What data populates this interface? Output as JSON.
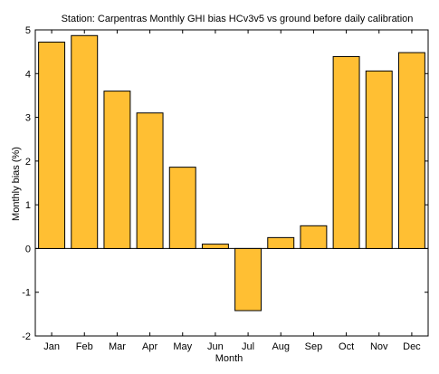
{
  "chart_data": {
    "type": "bar",
    "title": "Station: Carpentras Monthly GHI bias HCv3v5 vs ground before daily calibration",
    "xlabel": "Month",
    "ylabel": "Monthly bias (%)",
    "categories": [
      "Jan",
      "Feb",
      "Mar",
      "Apr",
      "May",
      "Jun",
      "Jul",
      "Aug",
      "Sep",
      "Oct",
      "Nov",
      "Dec"
    ],
    "values": [
      4.72,
      4.87,
      3.6,
      3.1,
      1.86,
      0.1,
      -1.42,
      0.25,
      0.52,
      4.39,
      4.06,
      4.48
    ],
    "ylim": [
      -2,
      5
    ],
    "yticks": [
      -2,
      -1,
      0,
      1,
      2,
      3,
      4,
      5
    ],
    "ytick_labels": [
      "-2",
      "-1",
      "0",
      "1",
      "2",
      "3",
      "4",
      "5"
    ],
    "grid": false,
    "legend": false,
    "colors": {
      "bar_fill": "#FFBF33",
      "bar_edge": "#000000",
      "axis": "#000000",
      "background": "#FFFFFF"
    }
  }
}
